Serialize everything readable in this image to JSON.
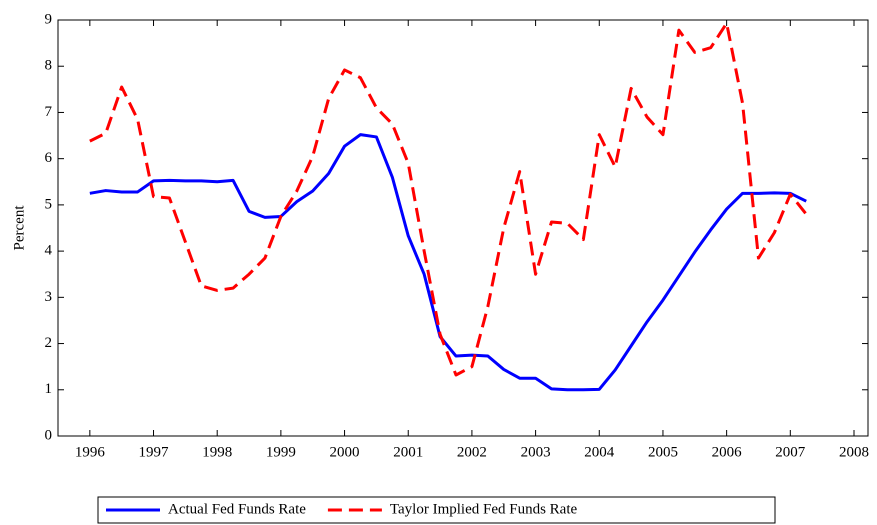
{
  "chart_data": {
    "type": "line",
    "y_label": "Percent",
    "x": [
      1996,
      1996.25,
      1996.5,
      1996.75,
      1997,
      1997.25,
      1997.5,
      1997.75,
      1998,
      1998.25,
      1998.5,
      1998.75,
      1999,
      1999.25,
      1999.5,
      1999.75,
      2000,
      2000.25,
      2000.5,
      2000.75,
      2001,
      2001.25,
      2001.5,
      2001.75,
      2002,
      2002.25,
      2002.5,
      2002.75,
      2003,
      2003.25,
      2003.5,
      2003.75,
      2004,
      2004.25,
      2004.5,
      2004.75,
      2005,
      2005.25,
      2005.5,
      2005.75,
      2006,
      2006.25,
      2006.5,
      2006.75,
      2007,
      2007.25
    ],
    "series": [
      {
        "name": "Actual Fed Funds Rate",
        "color": "#0000ff",
        "dash": false,
        "values": [
          5.25,
          5.31,
          5.28,
          5.28,
          5.52,
          5.53,
          5.52,
          5.52,
          5.5,
          5.53,
          4.86,
          4.73,
          4.75,
          5.07,
          5.3,
          5.68,
          6.27,
          6.52,
          6.47,
          5.6,
          4.33,
          3.5,
          2.15,
          1.73,
          1.75,
          1.73,
          1.44,
          1.25,
          1.25,
          1.02,
          1.0,
          1.0,
          1.01,
          1.43,
          1.95,
          2.47,
          2.94,
          3.46,
          3.98,
          4.46,
          4.91,
          5.25,
          5.25,
          5.26,
          5.25,
          5.08
        ]
      },
      {
        "name": "Taylor Implied Fed Funds Rate",
        "color": "#ff0000",
        "dash": true,
        "values": [
          6.38,
          6.55,
          7.55,
          6.85,
          5.18,
          5.15,
          4.2,
          3.25,
          3.15,
          3.2,
          3.5,
          3.85,
          4.75,
          5.3,
          6.05,
          7.3,
          7.92,
          7.75,
          7.1,
          6.75,
          5.9,
          4.0,
          2.2,
          1.32,
          1.5,
          2.8,
          4.5,
          5.72,
          3.5,
          4.63,
          4.6,
          4.25,
          6.52,
          5.82,
          7.52,
          6.9,
          6.52,
          8.78,
          8.3,
          8.4,
          8.93,
          7.2,
          3.85,
          4.4,
          5.23,
          4.8
        ]
      }
    ],
    "xlim": [
      1995.5,
      2008.22
    ],
    "ylim": [
      0,
      9
    ],
    "xticks": [
      1996,
      1997,
      1998,
      1999,
      2000,
      2001,
      2002,
      2003,
      2004,
      2005,
      2006,
      2007,
      2008
    ],
    "yticks": [
      0,
      1,
      2,
      3,
      4,
      5,
      6,
      7,
      8,
      9
    ],
    "legend": "bottom"
  }
}
